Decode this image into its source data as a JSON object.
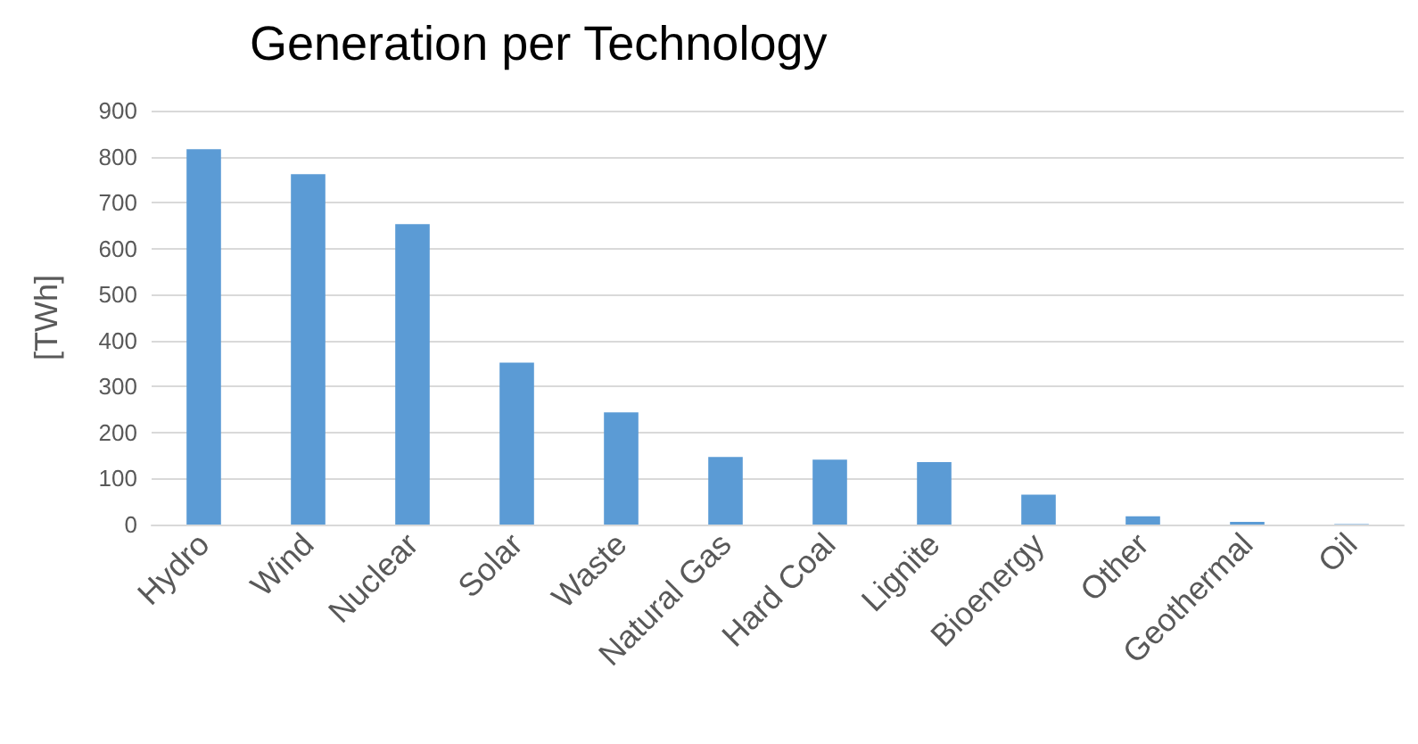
{
  "chart_data": {
    "type": "bar",
    "title": "Generation per Technology",
    "ylabel": "[TWh]",
    "categories": [
      "Hydro",
      "Wind",
      "Nuclear",
      "Solar",
      "Waste",
      "Natural Gas",
      "Hard Coal",
      "Lignite",
      "Bioenergy",
      "Other",
      "Geothermal",
      "Oil"
    ],
    "values": [
      816,
      762,
      653,
      352,
      244,
      147,
      141,
      136,
      65,
      18,
      6,
      1
    ],
    "color": "#5b9bd5",
    "ylim": [
      0,
      900
    ],
    "yticks": [
      0,
      100,
      200,
      300,
      400,
      500,
      600,
      700,
      800,
      900
    ],
    "grid": "y"
  }
}
